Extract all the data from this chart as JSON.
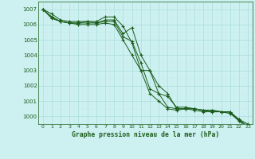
{
  "title": "Graphe pression niveau de la mer (hPa)",
  "bg_color": "#cdf0f0",
  "line_color": "#1a5c1a",
  "grid_major_color": "#aadddd",
  "grid_minor_color": "#c8ecec",
  "xlim": [
    -0.5,
    23.5
  ],
  "ylim": [
    999.5,
    1007.5
  ],
  "yticks": [
    1000,
    1001,
    1002,
    1003,
    1004,
    1005,
    1006,
    1007
  ],
  "xticks": [
    0,
    1,
    2,
    3,
    4,
    5,
    6,
    7,
    8,
    9,
    10,
    11,
    12,
    13,
    14,
    15,
    16,
    17,
    18,
    19,
    20,
    21,
    22,
    23
  ],
  "series": [
    [
      1007.0,
      1006.7,
      1006.3,
      1006.2,
      1006.2,
      1006.2,
      1006.2,
      1006.5,
      1006.5,
      1005.9,
      1004.8,
      1003.0,
      1003.0,
      1001.5,
      1000.6,
      1000.5,
      1000.5,
      1000.5,
      1000.4,
      1000.4,
      1000.3,
      1000.3,
      999.8,
      999.5
    ],
    [
      1007.0,
      1006.5,
      1006.2,
      1006.1,
      1006.1,
      1006.2,
      1006.1,
      1006.3,
      1006.3,
      1005.4,
      1005.8,
      1004.0,
      1003.0,
      1002.0,
      1001.5,
      1000.5,
      1000.5,
      1000.5,
      1000.4,
      1000.3,
      1000.3,
      1000.3,
      999.7,
      999.4
    ],
    [
      1007.0,
      1006.5,
      1006.2,
      1006.1,
      1006.1,
      1006.1,
      1006.1,
      1006.2,
      1006.2,
      1005.2,
      1004.9,
      1003.5,
      1001.8,
      1001.5,
      1001.3,
      1000.6,
      1000.6,
      1000.5,
      1000.4,
      1000.4,
      1000.3,
      1000.2,
      999.8,
      999.3
    ],
    [
      1007.0,
      1006.4,
      1006.2,
      1006.1,
      1006.0,
      1006.0,
      1006.0,
      1006.1,
      1006.0,
      1005.0,
      1004.0,
      1003.0,
      1001.5,
      1001.0,
      1000.5,
      1000.4,
      1000.5,
      1000.4,
      1000.3,
      1000.3,
      1000.3,
      1000.2,
      999.7,
      999.2
    ]
  ]
}
